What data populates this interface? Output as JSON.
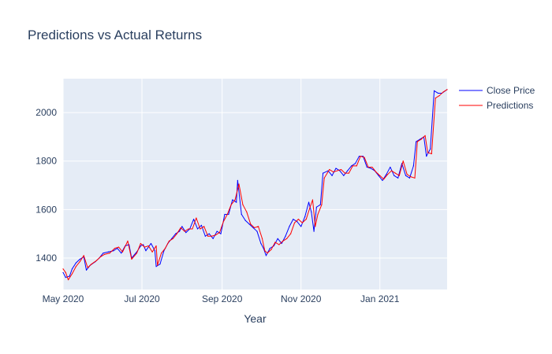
{
  "chart_data": {
    "type": "line",
    "title": "Predictions vs Actual Returns",
    "xlabel": "Year",
    "ylabel": "",
    "x_ticks": [
      "May 2020",
      "Jul 2020",
      "Sep 2020",
      "Nov 2020",
      "Jan 2021"
    ],
    "y_ticks": [
      "1400",
      "1600",
      "1800",
      "2000"
    ],
    "xlim": [
      "2020-05-01",
      "2021-02-22"
    ],
    "ylim": [
      1270,
      2140
    ],
    "grid": true,
    "legend_position": "top-right",
    "plot_bg": "#e5ecf6",
    "series": [
      {
        "name": "Close Price",
        "color": "#0000ff",
        "points": [
          [
            "2020-05-01",
            1340
          ],
          [
            "2020-05-03",
            1320
          ],
          [
            "2020-05-06",
            1325
          ],
          [
            "2020-05-08",
            1355
          ],
          [
            "2020-05-11",
            1380
          ],
          [
            "2020-05-14",
            1395
          ],
          [
            "2020-05-17",
            1405
          ],
          [
            "2020-05-19",
            1350
          ],
          [
            "2020-05-22",
            1370
          ],
          [
            "2020-05-26",
            1385
          ],
          [
            "2020-05-29",
            1400
          ],
          [
            "2020-06-01",
            1420
          ],
          [
            "2020-06-05",
            1425
          ],
          [
            "2020-06-09",
            1430
          ],
          [
            "2020-06-12",
            1440
          ],
          [
            "2020-06-15",
            1420
          ],
          [
            "2020-06-18",
            1450
          ],
          [
            "2020-06-21",
            1455
          ],
          [
            "2020-06-23",
            1400
          ],
          [
            "2020-06-27",
            1425
          ],
          [
            "2020-06-30",
            1450
          ],
          [
            "2020-07-02",
            1455
          ],
          [
            "2020-07-04",
            1430
          ],
          [
            "2020-07-08",
            1460
          ],
          [
            "2020-07-11",
            1430
          ],
          [
            "2020-07-12",
            1365
          ],
          [
            "2020-07-15",
            1375
          ],
          [
            "2020-07-18",
            1430
          ],
          [
            "2020-07-21",
            1460
          ],
          [
            "2020-07-24",
            1480
          ],
          [
            "2020-07-27",
            1500
          ],
          [
            "2020-07-30",
            1510
          ],
          [
            "2020-08-01",
            1530
          ],
          [
            "2020-08-04",
            1505
          ],
          [
            "2020-08-07",
            1520
          ],
          [
            "2020-08-10",
            1560
          ],
          [
            "2020-08-13",
            1520
          ],
          [
            "2020-08-16",
            1535
          ],
          [
            "2020-08-19",
            1490
          ],
          [
            "2020-08-22",
            1500
          ],
          [
            "2020-08-25",
            1480
          ],
          [
            "2020-08-28",
            1510
          ],
          [
            "2020-08-31",
            1500
          ],
          [
            "2020-09-03",
            1580
          ],
          [
            "2020-09-06",
            1580
          ],
          [
            "2020-09-09",
            1640
          ],
          [
            "2020-09-12",
            1630
          ],
          [
            "2020-09-13",
            1720
          ],
          [
            "2020-09-16",
            1580
          ],
          [
            "2020-09-19",
            1555
          ],
          [
            "2020-09-22",
            1540
          ],
          [
            "2020-09-25",
            1525
          ],
          [
            "2020-09-28",
            1510
          ],
          [
            "2020-10-01",
            1460
          ],
          [
            "2020-10-03",
            1440
          ],
          [
            "2020-10-05",
            1410
          ],
          [
            "2020-10-08",
            1440
          ],
          [
            "2020-10-11",
            1450
          ],
          [
            "2020-10-14",
            1480
          ],
          [
            "2020-10-17",
            1460
          ],
          [
            "2020-10-20",
            1490
          ],
          [
            "2020-10-23",
            1530
          ],
          [
            "2020-10-26",
            1560
          ],
          [
            "2020-10-29",
            1550
          ],
          [
            "2020-11-01",
            1530
          ],
          [
            "2020-11-04",
            1570
          ],
          [
            "2020-11-07",
            1630
          ],
          [
            "2020-11-09",
            1590
          ],
          [
            "2020-11-11",
            1510
          ],
          [
            "2020-11-13",
            1610
          ],
          [
            "2020-11-16",
            1620
          ],
          [
            "2020-11-18",
            1750
          ],
          [
            "2020-11-22",
            1760
          ],
          [
            "2020-11-25",
            1740
          ],
          [
            "2020-11-28",
            1770
          ],
          [
            "2020-12-01",
            1760
          ],
          [
            "2020-12-04",
            1740
          ],
          [
            "2020-12-07",
            1760
          ],
          [
            "2020-12-10",
            1780
          ],
          [
            "2020-12-13",
            1790
          ],
          [
            "2020-12-16",
            1820
          ],
          [
            "2020-12-19",
            1820
          ],
          [
            "2020-12-22",
            1775
          ],
          [
            "2020-12-25",
            1770
          ],
          [
            "2020-12-28",
            1760
          ],
          [
            "2020-12-31",
            1740
          ],
          [
            "2021-01-03",
            1720
          ],
          [
            "2021-01-06",
            1745
          ],
          [
            "2021-01-09",
            1775
          ],
          [
            "2021-01-12",
            1740
          ],
          [
            "2021-01-15",
            1730
          ],
          [
            "2021-01-18",
            1790
          ],
          [
            "2021-01-21",
            1740
          ],
          [
            "2021-01-24",
            1730
          ],
          [
            "2021-01-27",
            1780
          ],
          [
            "2021-01-29",
            1880
          ],
          [
            "2021-02-01",
            1890
          ],
          [
            "2021-02-04",
            1900
          ],
          [
            "2021-02-06",
            1820
          ],
          [
            "2021-02-09",
            1850
          ],
          [
            "2021-02-12",
            2090
          ],
          [
            "2021-02-15",
            2080
          ],
          [
            "2021-02-18",
            2080
          ],
          [
            "2021-02-22",
            2095
          ]
        ]
      },
      {
        "name": "Predictions",
        "color": "#ff0000",
        "points": [
          [
            "2020-05-01",
            1355
          ],
          [
            "2020-05-03",
            1340
          ],
          [
            "2020-05-05",
            1310
          ],
          [
            "2020-05-08",
            1335
          ],
          [
            "2020-05-11",
            1365
          ],
          [
            "2020-05-14",
            1385
          ],
          [
            "2020-05-17",
            1410
          ],
          [
            "2020-05-20",
            1360
          ],
          [
            "2020-05-23",
            1375
          ],
          [
            "2020-05-27",
            1390
          ],
          [
            "2020-05-30",
            1405
          ],
          [
            "2020-06-02",
            1415
          ],
          [
            "2020-06-06",
            1420
          ],
          [
            "2020-06-10",
            1440
          ],
          [
            "2020-06-13",
            1445
          ],
          [
            "2020-06-16",
            1425
          ],
          [
            "2020-06-20",
            1470
          ],
          [
            "2020-06-23",
            1395
          ],
          [
            "2020-06-27",
            1420
          ],
          [
            "2020-06-30",
            1460
          ],
          [
            "2020-07-03",
            1445
          ],
          [
            "2020-07-06",
            1450
          ],
          [
            "2020-07-09",
            1425
          ],
          [
            "2020-07-12",
            1450
          ],
          [
            "2020-07-13",
            1370
          ],
          [
            "2020-07-16",
            1420
          ],
          [
            "2020-07-19",
            1440
          ],
          [
            "2020-07-22",
            1470
          ],
          [
            "2020-07-25",
            1480
          ],
          [
            "2020-07-28",
            1500
          ],
          [
            "2020-07-31",
            1525
          ],
          [
            "2020-08-03",
            1510
          ],
          [
            "2020-08-06",
            1520
          ],
          [
            "2020-08-09",
            1520
          ],
          [
            "2020-08-12",
            1565
          ],
          [
            "2020-08-15",
            1520
          ],
          [
            "2020-08-18",
            1530
          ],
          [
            "2020-08-21",
            1490
          ],
          [
            "2020-08-24",
            1490
          ],
          [
            "2020-08-27",
            1495
          ],
          [
            "2020-08-30",
            1505
          ],
          [
            "2020-09-02",
            1550
          ],
          [
            "2020-09-05",
            1580
          ],
          [
            "2020-09-08",
            1620
          ],
          [
            "2020-09-11",
            1640
          ],
          [
            "2020-09-14",
            1705
          ],
          [
            "2020-09-17",
            1620
          ],
          [
            "2020-09-20",
            1590
          ],
          [
            "2020-09-23",
            1540
          ],
          [
            "2020-09-26",
            1525
          ],
          [
            "2020-09-29",
            1530
          ],
          [
            "2020-10-02",
            1480
          ],
          [
            "2020-10-04",
            1430
          ],
          [
            "2020-10-06",
            1420
          ],
          [
            "2020-10-09",
            1435
          ],
          [
            "2020-10-12",
            1465
          ],
          [
            "2020-10-15",
            1455
          ],
          [
            "2020-10-18",
            1470
          ],
          [
            "2020-10-21",
            1480
          ],
          [
            "2020-10-24",
            1500
          ],
          [
            "2020-10-27",
            1545
          ],
          [
            "2020-10-30",
            1560
          ],
          [
            "2020-11-02",
            1545
          ],
          [
            "2020-11-05",
            1560
          ],
          [
            "2020-11-08",
            1610
          ],
          [
            "2020-11-10",
            1640
          ],
          [
            "2020-11-12",
            1530
          ],
          [
            "2020-11-14",
            1580
          ],
          [
            "2020-11-17",
            1620
          ],
          [
            "2020-11-19",
            1730
          ],
          [
            "2020-11-23",
            1765
          ],
          [
            "2020-11-26",
            1755
          ],
          [
            "2020-11-29",
            1760
          ],
          [
            "2020-12-02",
            1765
          ],
          [
            "2020-12-05",
            1750
          ],
          [
            "2020-12-08",
            1750
          ],
          [
            "2020-12-11",
            1780
          ],
          [
            "2020-12-14",
            1780
          ],
          [
            "2020-12-17",
            1820
          ],
          [
            "2020-12-20",
            1815
          ],
          [
            "2020-12-23",
            1775
          ],
          [
            "2020-12-26",
            1775
          ],
          [
            "2020-12-29",
            1755
          ],
          [
            "2021-01-01",
            1740
          ],
          [
            "2021-01-04",
            1725
          ],
          [
            "2021-01-07",
            1745
          ],
          [
            "2021-01-10",
            1760
          ],
          [
            "2021-01-13",
            1750
          ],
          [
            "2021-01-16",
            1740
          ],
          [
            "2021-01-19",
            1800
          ],
          [
            "2021-01-22",
            1745
          ],
          [
            "2021-01-25",
            1735
          ],
          [
            "2021-01-28",
            1730
          ],
          [
            "2021-01-30",
            1880
          ],
          [
            "2021-02-02",
            1890
          ],
          [
            "2021-02-05",
            1905
          ],
          [
            "2021-02-07",
            1835
          ],
          [
            "2021-02-10",
            1830
          ],
          [
            "2021-02-13",
            2060
          ],
          [
            "2021-02-16",
            2070
          ],
          [
            "2021-02-19",
            2085
          ],
          [
            "2021-02-22",
            2095
          ]
        ]
      }
    ]
  }
}
